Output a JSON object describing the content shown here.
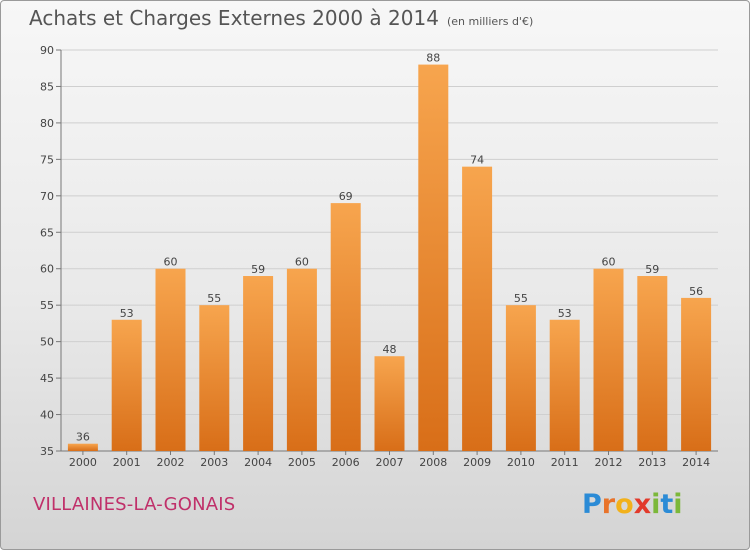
{
  "header": {
    "title": "Achats et Charges Externes 2000 à 2014",
    "unit": "(en milliers d'€)"
  },
  "footer": {
    "commune": "VILLAINES-LA-GONAIS",
    "logo_letters": [
      "P",
      "r",
      "o",
      "x",
      "i",
      "t",
      "i"
    ]
  },
  "colors": {
    "bar_light": "#f7a54e",
    "bar_dark": "#d86e18",
    "grid": "#cfcfcf",
    "logo": [
      "#2b8bd6",
      "#e8732a",
      "#f2b11b",
      "#e23a2b",
      "#7cb83a",
      "#2b8bd6",
      "#7cb83a"
    ]
  },
  "chart_data": {
    "type": "bar",
    "title": "Achats et Charges Externes 2000 à 2014",
    "subtitle": "(en milliers d'€)",
    "categories": [
      "2000",
      "2001",
      "2002",
      "2003",
      "2004",
      "2005",
      "2006",
      "2007",
      "2008",
      "2009",
      "2010",
      "2011",
      "2012",
      "2013",
      "2014"
    ],
    "values": [
      36,
      53,
      60,
      55,
      59,
      60,
      69,
      48,
      88,
      74,
      55,
      53,
      60,
      59,
      56
    ],
    "ylim": [
      35,
      90
    ],
    "yticks": [
      35,
      40,
      45,
      50,
      55,
      60,
      65,
      70,
      75,
      80,
      85,
      90
    ],
    "grid": true,
    "xlabel": "",
    "ylabel": ""
  }
}
